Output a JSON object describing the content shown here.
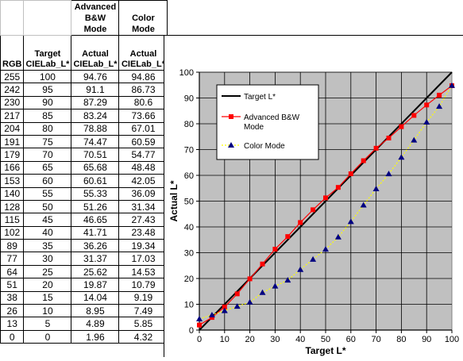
{
  "table": {
    "headers": {
      "adv_mode": [
        "Advanced",
        "B&W",
        "Mode"
      ],
      "color_mode": [
        "Color",
        "Mode"
      ],
      "rgb": "RGB",
      "target": [
        "Target",
        "CIELab_L*"
      ],
      "actual_adv": [
        "Actual",
        "CIELab_L*"
      ],
      "actual_color": [
        "Actual",
        "CIELab_L*"
      ]
    },
    "rows": [
      {
        "rgb": "255",
        "target": "100",
        "adv": "94.76",
        "color": "94.86"
      },
      {
        "rgb": "242",
        "target": "95",
        "adv": "91.1",
        "color": "86.73"
      },
      {
        "rgb": "230",
        "target": "90",
        "adv": "87.29",
        "color": "80.6"
      },
      {
        "rgb": "217",
        "target": "85",
        "adv": "83.24",
        "color": "73.66"
      },
      {
        "rgb": "204",
        "target": "80",
        "adv": "78.88",
        "color": "67.01"
      },
      {
        "rgb": "191",
        "target": "75",
        "adv": "74.47",
        "color": "60.59"
      },
      {
        "rgb": "179",
        "target": "70",
        "adv": "70.51",
        "color": "54.77"
      },
      {
        "rgb": "166",
        "target": "65",
        "adv": "65.68",
        "color": "48.48"
      },
      {
        "rgb": "153",
        "target": "60",
        "adv": "60.61",
        "color": "42.05"
      },
      {
        "rgb": "140",
        "target": "55",
        "adv": "55.33",
        "color": "36.09"
      },
      {
        "rgb": "128",
        "target": "50",
        "adv": "51.26",
        "color": "31.34"
      },
      {
        "rgb": "115",
        "target": "45",
        "adv": "46.65",
        "color": "27.43"
      },
      {
        "rgb": "102",
        "target": "40",
        "adv": "41.71",
        "color": "23.48"
      },
      {
        "rgb": "89",
        "target": "35",
        "adv": "36.26",
        "color": "19.34"
      },
      {
        "rgb": "77",
        "target": "30",
        "adv": "31.37",
        "color": "17.03"
      },
      {
        "rgb": "64",
        "target": "25",
        "adv": "25.62",
        "color": "14.53"
      },
      {
        "rgb": "51",
        "target": "20",
        "adv": "19.87",
        "color": "10.79"
      },
      {
        "rgb": "38",
        "target": "15",
        "adv": "14.04",
        "color": "9.19"
      },
      {
        "rgb": "26",
        "target": "10",
        "adv": "8.95",
        "color": "7.49"
      },
      {
        "rgb": "13",
        "target": "5",
        "adv": "4.89",
        "color": "5.85"
      },
      {
        "rgb": "0",
        "target": "0",
        "adv": "1.96",
        "color": "4.32"
      }
    ]
  },
  "chart_data": {
    "type": "line",
    "title": "",
    "xlabel": "Target L*",
    "ylabel": "Actual L*",
    "xlim": [
      0,
      100
    ],
    "ylim": [
      0,
      100
    ],
    "x_ticks": [
      "0",
      "10",
      "20",
      "30",
      "40",
      "50",
      "60",
      "70",
      "80",
      "90",
      "100"
    ],
    "y_ticks": [
      "0",
      "10",
      "20",
      "30",
      "40",
      "50",
      "60",
      "70",
      "80",
      "90",
      "100"
    ],
    "grid": true,
    "plot_background": "#c0c0c0",
    "legend_position": "top-left",
    "x": [
      0,
      5,
      10,
      15,
      20,
      25,
      30,
      35,
      40,
      45,
      50,
      55,
      60,
      65,
      70,
      75,
      80,
      85,
      90,
      95,
      100
    ],
    "series": [
      {
        "name": "Target L*",
        "color": "#000000",
        "marker": "none",
        "line": "solid",
        "values": [
          0,
          5,
          10,
          15,
          20,
          25,
          30,
          35,
          40,
          45,
          50,
          55,
          60,
          65,
          70,
          75,
          80,
          85,
          90,
          95,
          100
        ]
      },
      {
        "name": "Advanced B&W Mode",
        "color": "#ff0000",
        "marker": "square",
        "line": "solid",
        "values": [
          1.96,
          4.89,
          8.95,
          14.04,
          19.87,
          25.62,
          31.37,
          36.26,
          41.71,
          46.65,
          51.26,
          55.33,
          60.61,
          65.68,
          70.51,
          74.47,
          78.88,
          83.24,
          87.29,
          91.1,
          94.76
        ]
      },
      {
        "name": "Color Mode",
        "color": "#ffff00",
        "marker_color": "#000080",
        "marker": "triangle",
        "line": "dashed",
        "values": [
          4.32,
          5.85,
          7.49,
          9.19,
          10.79,
          14.53,
          17.03,
          19.34,
          23.48,
          27.43,
          31.34,
          36.09,
          42.05,
          48.48,
          54.77,
          60.59,
          67.01,
          73.66,
          80.6,
          86.73,
          94.86
        ]
      }
    ],
    "legend_lines": [
      [
        "Target L*"
      ],
      [
        "Advanced B&W",
        "Mode"
      ],
      [
        "Color Mode"
      ]
    ]
  }
}
